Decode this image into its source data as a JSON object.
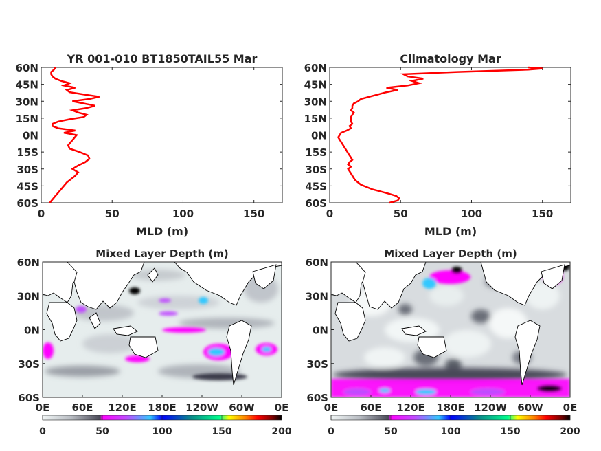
{
  "chart_data": [
    {
      "type": "line",
      "title": "YR 001-010 BT1850TAIL55 Mar",
      "xlabel": "MLD (m)",
      "ylabel": "",
      "xlim": [
        0,
        170
      ],
      "ylim": [
        -60,
        60
      ],
      "x_ticks": [
        "0",
        "50",
        "100",
        "150"
      ],
      "y_ticks": [
        "60S",
        "45S",
        "30S",
        "15S",
        "0N",
        "15N",
        "30N",
        "45N",
        "60N"
      ],
      "color": "#ff0000",
      "series": [
        {
          "lat": [
            -60,
            -57,
            -54,
            -51,
            -48,
            -45,
            -42,
            -39,
            -36,
            -33,
            -30,
            -27,
            -24,
            -21,
            -18,
            -15,
            -12,
            -9,
            -6,
            -3,
            0,
            2,
            4,
            6,
            8,
            10,
            12,
            14,
            16,
            18,
            20,
            22,
            24,
            26,
            28,
            30,
            32,
            34,
            36,
            38,
            40,
            42,
            44,
            46,
            48,
            50,
            52,
            54,
            56,
            58,
            60
          ],
          "mld": [
            6,
            8,
            10,
            12,
            14,
            16,
            18,
            21,
            24,
            26,
            22,
            26,
            31,
            34,
            33,
            27,
            20,
            19,
            21,
            23,
            25,
            16,
            24,
            12,
            8,
            8,
            12,
            20,
            30,
            32,
            26,
            22,
            32,
            38,
            30,
            22,
            34,
            41,
            30,
            20,
            18,
            24,
            16,
            20,
            14,
            10,
            8,
            7,
            7,
            9,
            10
          ]
        }
      ]
    },
    {
      "type": "line",
      "title": "Climatology Mar",
      "xlabel": "MLD (m)",
      "ylabel": "",
      "xlim": [
        0,
        170
      ],
      "ylim": [
        -60,
        60
      ],
      "x_ticks": [
        "0",
        "50",
        "100",
        "150"
      ],
      "y_ticks": [
        "60S",
        "45S",
        "30S",
        "15S",
        "0N",
        "15N",
        "30N",
        "45N",
        "60N"
      ],
      "color": "#ff0000",
      "series": [
        {
          "lat": [
            -60,
            -58,
            -56,
            -54,
            -52,
            -50,
            -48,
            -46,
            -44,
            -42,
            -40,
            -38,
            -36,
            -34,
            -32,
            -30,
            -28,
            -26,
            -24,
            -22,
            -20,
            -18,
            -16,
            -14,
            -12,
            -10,
            -8,
            -6,
            -4,
            -2,
            0,
            2,
            4,
            6,
            8,
            10,
            12,
            14,
            16,
            18,
            20,
            22,
            24,
            26,
            28,
            30,
            32,
            34,
            36,
            38,
            40,
            42,
            44,
            46,
            48,
            50,
            52,
            54,
            56,
            58,
            59,
            60
          ],
          "mld": [
            42,
            48,
            49,
            47,
            42,
            36,
            30,
            26,
            22,
            20,
            18,
            17,
            16,
            15,
            14,
            13,
            15,
            13,
            14,
            16,
            15,
            14,
            13,
            12,
            11,
            10,
            9,
            8,
            7,
            6,
            7,
            8,
            12,
            15,
            14,
            16,
            15,
            15,
            15,
            16,
            17,
            15,
            16,
            16,
            17,
            20,
            22,
            28,
            34,
            40,
            48,
            40,
            55,
            63,
            58,
            66,
            55,
            52,
            90,
            140,
            150,
            140
          ]
        }
      ]
    },
    {
      "type": "heatmap",
      "title": "Mixed Layer Depth (m)",
      "x_ticks": [
        "0E",
        "60E",
        "120E",
        "180E",
        "120W",
        "60W",
        "0E"
      ],
      "y_ticks": [
        "60N",
        "30N",
        "0N",
        "30S",
        "60S"
      ],
      "colorbar_ticks": [
        "0",
        "50",
        "100",
        "150",
        "200"
      ],
      "colorbar_range": [
        0,
        200
      ],
      "colorbar_colors": [
        "#f0f5f5",
        "#b8bcc2",
        "#4a4a58",
        "#ff00ff",
        "#c04cff",
        "#33c8ff",
        "#0000ff",
        "#0a8a8a",
        "#00ff8c",
        "#ffff00",
        "#ff7f00",
        "#ff0000",
        "#800000",
        "#000000"
      ]
    },
    {
      "type": "heatmap",
      "title": "Mixed Layer Depth (m)",
      "x_ticks": [
        "0E",
        "60E",
        "120E",
        "180E",
        "120W",
        "60W",
        "0E"
      ],
      "y_ticks": [
        "60N",
        "30N",
        "0N",
        "30S",
        "60S"
      ],
      "colorbar_ticks": [
        "0",
        "50",
        "100",
        "150",
        "200"
      ],
      "colorbar_range": [
        0,
        200
      ],
      "colorbar_colors": [
        "#f0f5f5",
        "#b8bcc2",
        "#4a4a58",
        "#ff00ff",
        "#c04cff",
        "#33c8ff",
        "#0000ff",
        "#0a8a8a",
        "#00ff8c",
        "#ffff00",
        "#ff7f00",
        "#ff0000",
        "#800000",
        "#000000"
      ]
    }
  ]
}
